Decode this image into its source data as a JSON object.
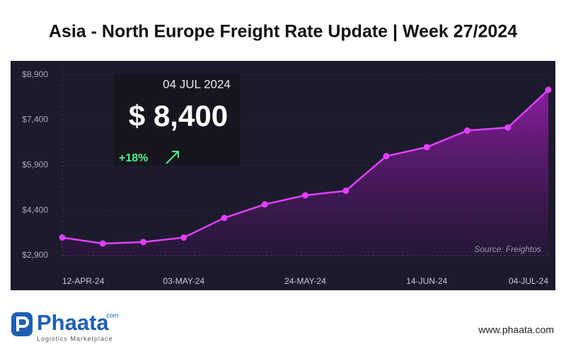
{
  "chart_data": {
    "type": "line",
    "title": "Asia - North Europe Freight Rate Update | Week 27/2024",
    "categories": [
      "12-APR-24",
      null,
      null,
      "03-MAY-24",
      null,
      null,
      "24-MAY-24",
      null,
      null,
      "14-JUN-24",
      null,
      null,
      "04-JUL-24"
    ],
    "series": [
      {
        "name": "Freight rate",
        "color": "#e040fb",
        "values": [
          3500,
          3300,
          3350,
          3500,
          4150,
          4600,
          4900,
          5050,
          6200,
          6500,
          7050,
          7150,
          8400
        ]
      }
    ],
    "ylim": [
      2900,
      9150
    ],
    "yticks": [
      {
        "value": 8900,
        "label": "$8,900"
      },
      {
        "value": 7400,
        "label": "$7,400"
      },
      {
        "value": 5900,
        "label": "$5,900"
      },
      {
        "value": 4400,
        "label": "$4,400"
      },
      {
        "value": 2900,
        "label": "$2,900"
      }
    ],
    "grid": true,
    "annotations": {
      "date": "04 JUL 2024",
      "price": "$ 8,400",
      "change": "+18%",
      "source": "Source: Freightos"
    }
  },
  "footer": {
    "brand": "Phaata",
    "brand_suffix": ".com",
    "tagline": "Logistics Marketplace",
    "website": "www.phaata.com"
  }
}
